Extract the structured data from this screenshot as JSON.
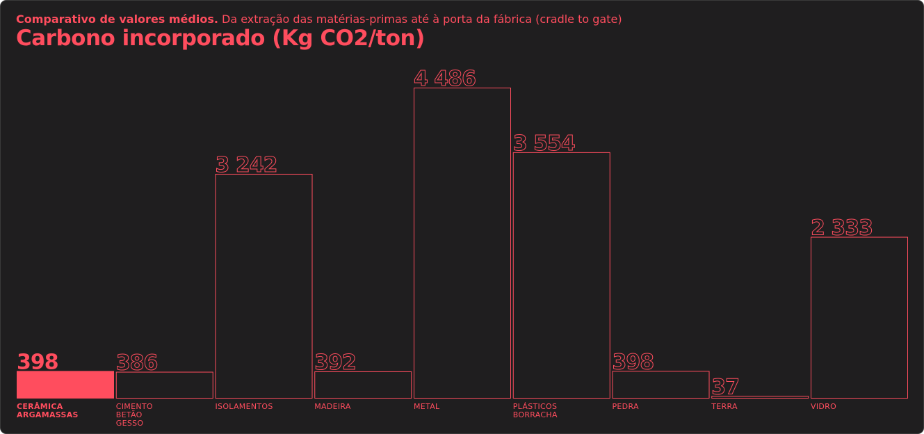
{
  "subtitle_bold": "Comparativo de valores médios.",
  "subtitle_rest": " Da extração das matérias-primas até à porta da fábrica (cradle to gate)",
  "title": "Carbono incorporado (Kg CO2/ton)",
  "colors": {
    "accent": "#ff4d5e",
    "background": "#1f1e1f"
  },
  "chart_data": {
    "type": "bar",
    "title": "Carbono incorporado (Kg CO2/ton)",
    "subtitle": "Comparativo de valores médios. Da extração das matérias-primas até à porta da fábrica (cradle to gate)",
    "categories": [
      [
        "CERÂMICA",
        "ARGAMASSAS"
      ],
      [
        "CIMENTO",
        "BETÃO",
        "GESSO"
      ],
      [
        "ISOLAMENTOS"
      ],
      [
        "MADEIRA"
      ],
      [
        "METAL"
      ],
      [
        "PLÁSTICOS",
        "BORRACHA"
      ],
      [
        "PEDRA"
      ],
      [
        "TERRA"
      ],
      [
        "VIDRO"
      ]
    ],
    "values": [
      398,
      386,
      3242,
      392,
      4486,
      3554,
      398,
      37,
      2333
    ],
    "value_labels": [
      "398",
      "386",
      "3 242",
      "392",
      "4 486",
      "3 554",
      "398",
      "37",
      "2 333"
    ],
    "highlighted_index": 0,
    "ylim": [
      0,
      4486
    ]
  }
}
